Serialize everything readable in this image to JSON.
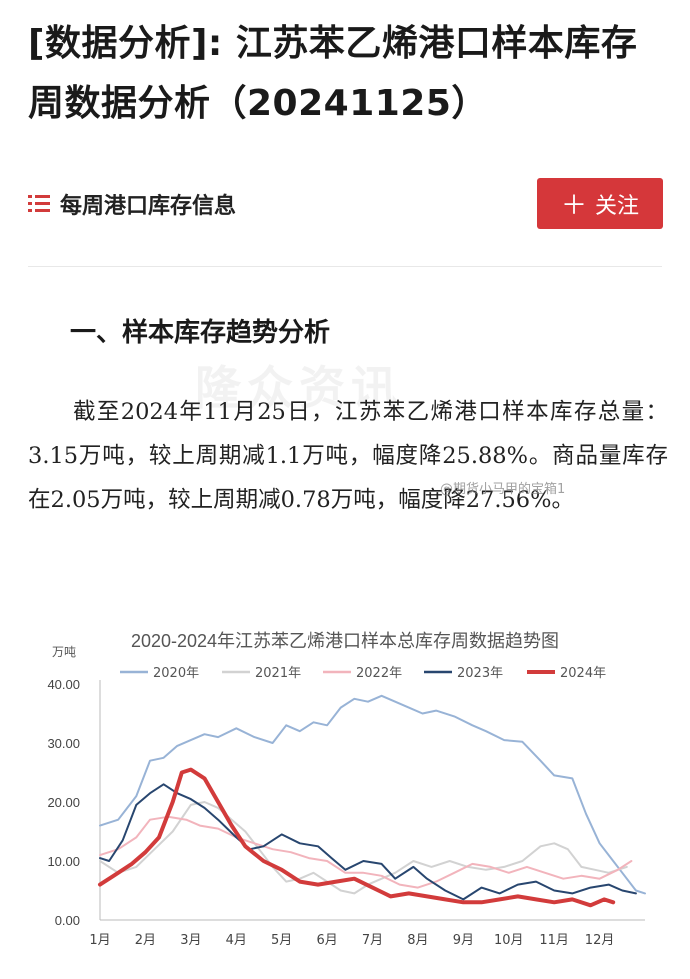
{
  "article": {
    "title": "[数据分析]: 江苏苯乙烯港口样本库存周数据分析（20241125）",
    "tag": "每周港口库存信息",
    "follow_label": "关注",
    "section_heading": "一、样本库存趋势分析",
    "paragraph": "截至2024年11月25日，江苏苯乙烯港口样本库存总量：3.15万吨，较上周期减1.1万吨，幅度降25.88%。商品量库存在2.05万吨，较上周期减0.78万吨，幅度降27.56%。",
    "watermark_main": "隆众资讯",
    "watermark_weibo": "@期货小马甲的宝箱1"
  },
  "chart_data": {
    "type": "line",
    "title": "2020-2024年江苏苯乙烯港口样本总库存周数据趋势图",
    "ylabel": "万吨",
    "ylim": [
      0,
      40
    ],
    "yticks": [
      "40.00",
      "30.00",
      "20.00",
      "10.00",
      "0.00"
    ],
    "ytick_values": [
      40,
      30,
      20,
      10,
      0
    ],
    "xlim": [
      1,
      13
    ],
    "xticks": [
      "1月",
      "2月",
      "3月",
      "4月",
      "5月",
      "6月",
      "7月",
      "8月",
      "9月",
      "10月",
      "11月",
      "12月"
    ],
    "grid": false,
    "legend_position": "top",
    "series": [
      {
        "name": "2020年",
        "color": "#98b3d6",
        "width": 2,
        "points": [
          [
            1,
            16
          ],
          [
            1.4,
            17
          ],
          [
            1.8,
            21
          ],
          [
            2.1,
            27
          ],
          [
            2.4,
            27.5
          ],
          [
            2.7,
            29.5
          ],
          [
            3,
            30.5
          ],
          [
            3.3,
            31.5
          ],
          [
            3.6,
            31
          ],
          [
            4,
            32.5
          ],
          [
            4.4,
            31
          ],
          [
            4.8,
            30
          ],
          [
            5.1,
            33
          ],
          [
            5.4,
            32
          ],
          [
            5.7,
            33.5
          ],
          [
            6,
            33
          ],
          [
            6.3,
            36
          ],
          [
            6.6,
            37.5
          ],
          [
            6.9,
            37
          ],
          [
            7.2,
            38
          ],
          [
            7.5,
            37
          ],
          [
            7.8,
            36
          ],
          [
            8.1,
            35
          ],
          [
            8.4,
            35.5
          ],
          [
            8.8,
            34.5
          ],
          [
            9.2,
            33
          ],
          [
            9.5,
            32
          ],
          [
            9.9,
            30.5
          ],
          [
            10.3,
            30.2
          ],
          [
            10.7,
            27
          ],
          [
            11,
            24.5
          ],
          [
            11.4,
            24
          ],
          [
            11.7,
            18
          ],
          [
            12,
            13
          ],
          [
            12.3,
            10
          ],
          [
            12.5,
            8
          ],
          [
            12.8,
            5
          ],
          [
            13,
            4.5
          ]
        ]
      },
      {
        "name": "2021年",
        "color": "#d2d2d2",
        "width": 2,
        "points": [
          [
            1,
            10
          ],
          [
            1.4,
            8
          ],
          [
            1.8,
            9
          ],
          [
            2.2,
            12
          ],
          [
            2.6,
            15
          ],
          [
            3,
            19.5
          ],
          [
            3.3,
            20
          ],
          [
            3.6,
            19
          ],
          [
            3.9,
            17
          ],
          [
            4.2,
            15
          ],
          [
            4.5,
            12
          ],
          [
            4.8,
            9
          ],
          [
            5.1,
            6.5
          ],
          [
            5.4,
            7
          ],
          [
            5.7,
            8
          ],
          [
            6,
            6.5
          ],
          [
            6.3,
            5
          ],
          [
            6.6,
            4.5
          ],
          [
            6.9,
            6
          ],
          [
            7.2,
            7
          ],
          [
            7.5,
            8
          ],
          [
            7.9,
            10
          ],
          [
            8.3,
            9
          ],
          [
            8.7,
            10
          ],
          [
            9.1,
            9
          ],
          [
            9.5,
            8.5
          ],
          [
            9.9,
            9
          ],
          [
            10.3,
            10
          ],
          [
            10.7,
            12.5
          ],
          [
            11,
            13
          ],
          [
            11.3,
            12
          ],
          [
            11.6,
            9
          ],
          [
            11.9,
            8.5
          ],
          [
            12.2,
            8
          ],
          [
            12.6,
            9
          ]
        ]
      },
      {
        "name": "2022年",
        "color": "#f2b4bc",
        "width": 2,
        "points": [
          [
            1,
            11
          ],
          [
            1.4,
            12
          ],
          [
            1.8,
            14
          ],
          [
            2.1,
            17
          ],
          [
            2.5,
            17.5
          ],
          [
            2.9,
            17
          ],
          [
            3.2,
            16
          ],
          [
            3.6,
            15.5
          ],
          [
            4,
            14
          ],
          [
            4.4,
            13
          ],
          [
            4.8,
            12
          ],
          [
            5.2,
            11.5
          ],
          [
            5.6,
            10.5
          ],
          [
            6,
            10
          ],
          [
            6.4,
            8
          ],
          [
            6.8,
            8
          ],
          [
            7.2,
            7.5
          ],
          [
            7.6,
            6
          ],
          [
            8,
            5.5
          ],
          [
            8.4,
            6.5
          ],
          [
            8.8,
            8
          ],
          [
            9.2,
            9.5
          ],
          [
            9.6,
            9
          ],
          [
            10,
            8
          ],
          [
            10.4,
            9
          ],
          [
            10.8,
            8
          ],
          [
            11.2,
            7
          ],
          [
            11.6,
            7.5
          ],
          [
            12,
            7
          ],
          [
            12.4,
            8.5
          ],
          [
            12.7,
            10
          ]
        ]
      },
      {
        "name": "2023年",
        "color": "#28466f",
        "width": 2,
        "points": [
          [
            1,
            10.5
          ],
          [
            1.2,
            10
          ],
          [
            1.5,
            13.5
          ],
          [
            1.8,
            19.5
          ],
          [
            2.1,
            21.5
          ],
          [
            2.4,
            23
          ],
          [
            2.7,
            21.5
          ],
          [
            3,
            20.5
          ],
          [
            3.3,
            19
          ],
          [
            3.6,
            17
          ],
          [
            4,
            14
          ],
          [
            4.3,
            12
          ],
          [
            4.6,
            12.5
          ],
          [
            5,
            14.5
          ],
          [
            5.4,
            13
          ],
          [
            5.8,
            12.5
          ],
          [
            6.1,
            10.5
          ],
          [
            6.4,
            8.5
          ],
          [
            6.8,
            10
          ],
          [
            7.2,
            9.5
          ],
          [
            7.5,
            7
          ],
          [
            7.9,
            9
          ],
          [
            8.2,
            7
          ],
          [
            8.6,
            5
          ],
          [
            9,
            3.5
          ],
          [
            9.4,
            5.5
          ],
          [
            9.8,
            4.5
          ],
          [
            10.2,
            6
          ],
          [
            10.6,
            6.5
          ],
          [
            11,
            5
          ],
          [
            11.4,
            4.5
          ],
          [
            11.8,
            5.5
          ],
          [
            12.2,
            6
          ],
          [
            12.5,
            5
          ],
          [
            12.8,
            4.5
          ]
        ]
      },
      {
        "name": "2024年",
        "color": "#d23b3b",
        "width": 4,
        "points": [
          [
            1,
            6
          ],
          [
            1.3,
            7.5
          ],
          [
            1.7,
            9.5
          ],
          [
            2,
            11.5
          ],
          [
            2.3,
            14
          ],
          [
            2.6,
            20
          ],
          [
            2.8,
            25
          ],
          [
            3,
            25.5
          ],
          [
            3.3,
            24
          ],
          [
            3.6,
            20
          ],
          [
            3.9,
            16
          ],
          [
            4.2,
            12.5
          ],
          [
            4.6,
            10
          ],
          [
            5,
            8.5
          ],
          [
            5.4,
            6.5
          ],
          [
            5.8,
            6
          ],
          [
            6.2,
            6.5
          ],
          [
            6.6,
            7
          ],
          [
            7,
            5.5
          ],
          [
            7.4,
            4
          ],
          [
            7.8,
            4.5
          ],
          [
            8.2,
            4
          ],
          [
            8.6,
            3.5
          ],
          [
            9,
            3
          ],
          [
            9.4,
            3
          ],
          [
            9.8,
            3.5
          ],
          [
            10.2,
            4
          ],
          [
            10.6,
            3.5
          ],
          [
            11,
            3
          ],
          [
            11.4,
            3.5
          ],
          [
            11.8,
            2.5
          ],
          [
            12.1,
            3.5
          ],
          [
            12.3,
            3
          ]
        ]
      }
    ]
  }
}
